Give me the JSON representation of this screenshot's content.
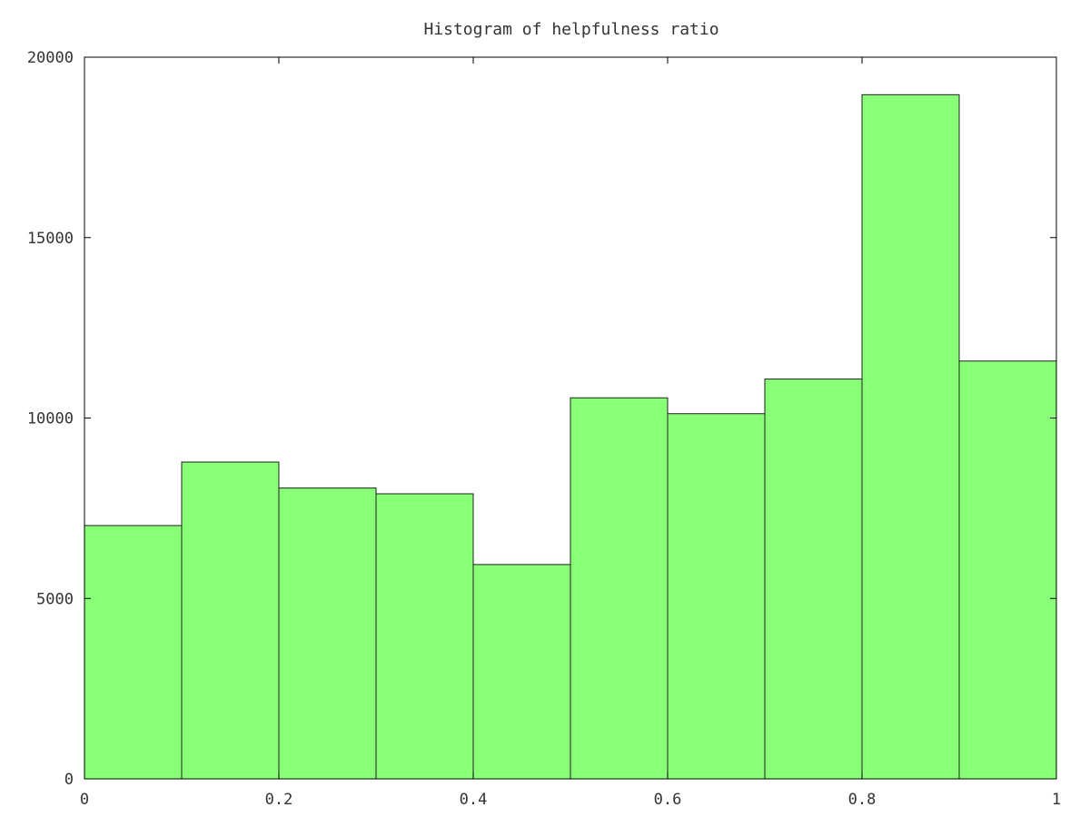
{
  "chart_data": {
    "type": "bar",
    "title": "Histogram of helpfulness ratio",
    "xlabel": "",
    "ylabel": "",
    "bin_edges": [
      0,
      0.1,
      0.2,
      0.3,
      0.4,
      0.5,
      0.6,
      0.7,
      0.8,
      0.9,
      1.0
    ],
    "values": [
      7020,
      8780,
      8060,
      7900,
      5940,
      10560,
      10120,
      11080,
      18960,
      11580
    ],
    "xlim": [
      0,
      1
    ],
    "ylim": [
      0,
      20000
    ],
    "x_ticks": [
      {
        "value": 0,
        "label": "0"
      },
      {
        "value": 0.2,
        "label": "0.2"
      },
      {
        "value": 0.4,
        "label": "0.4"
      },
      {
        "value": 0.6,
        "label": "0.6"
      },
      {
        "value": 0.8,
        "label": "0.8"
      },
      {
        "value": 1,
        "label": "1"
      }
    ],
    "y_ticks": [
      {
        "value": 0,
        "label": "0"
      },
      {
        "value": 5000,
        "label": "5000"
      },
      {
        "value": 10000,
        "label": "10000"
      },
      {
        "value": 15000,
        "label": "15000"
      },
      {
        "value": 20000,
        "label": "20000"
      }
    ],
    "grid": false,
    "bar_color": "#88ff77",
    "edge_color": "#1f1f1f",
    "legend": "none"
  }
}
